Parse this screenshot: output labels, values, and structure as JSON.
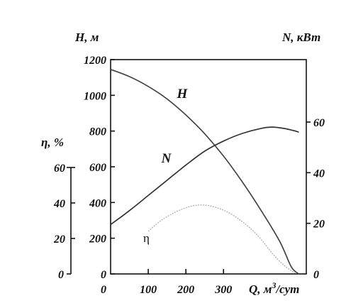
{
  "chart_data": {
    "type": "line",
    "x": {
      "label": "Q, м³/сут",
      "range": [
        0,
        520
      ],
      "ticks": [
        0,
        100,
        200,
        300
      ],
      "tick_labels": [
        "0",
        "100",
        "200",
        "300"
      ]
    },
    "y_left_H": {
      "label": "H, м",
      "range": [
        0,
        1200
      ],
      "ticks": [
        0,
        200,
        400,
        600,
        800,
        1000,
        1200
      ],
      "tick_labels": [
        "0",
        "200",
        "400",
        "600",
        "800",
        "1000",
        "1200"
      ]
    },
    "y_left_eta": {
      "label": "η, %",
      "range": [
        0,
        60
      ],
      "ticks": [
        20,
        40,
        60
      ],
      "tick_labels": [
        "20",
        "40",
        "60"
      ]
    },
    "y_right_N": {
      "label": "N, кВт",
      "range": [
        0,
        60
      ],
      "ticks": [
        0,
        20,
        40,
        60
      ],
      "tick_labels": [
        "0",
        "20",
        "40",
        "60"
      ]
    },
    "series": [
      {
        "name": "H",
        "axis": "y_left_H",
        "color": "#444444",
        "points": [
          [
            0,
            1145
          ],
          [
            50,
            1105
          ],
          [
            100,
            1050
          ],
          [
            150,
            980
          ],
          [
            200,
            890
          ],
          [
            250,
            785
          ],
          [
            300,
            660
          ],
          [
            350,
            515
          ],
          [
            400,
            355
          ],
          [
            450,
            180
          ],
          [
            480,
            40
          ],
          [
            500,
            0
          ]
        ]
      },
      {
        "name": "N",
        "axis": "y_right_N",
        "color": "#333333",
        "points": [
          [
            0,
            19.5
          ],
          [
            50,
            25
          ],
          [
            100,
            31
          ],
          [
            150,
            37
          ],
          [
            200,
            43
          ],
          [
            250,
            48.5
          ],
          [
            300,
            52.5
          ],
          [
            350,
            55.5
          ],
          [
            400,
            57.5
          ],
          [
            430,
            58
          ],
          [
            460,
            57.5
          ],
          [
            490,
            56.5
          ],
          [
            500,
            56
          ]
        ]
      },
      {
        "name": "η",
        "axis": "y_left_eta",
        "color": "#b0b0b0",
        "points": [
          [
            100,
            24
          ],
          [
            130,
            29.5
          ],
          [
            160,
            33.5
          ],
          [
            190,
            36.5
          ],
          [
            220,
            38.5
          ],
          [
            250,
            38.8
          ],
          [
            280,
            37.5
          ],
          [
            310,
            35
          ],
          [
            340,
            31
          ],
          [
            370,
            26
          ],
          [
            400,
            19.5
          ],
          [
            430,
            11.5
          ],
          [
            460,
            5
          ],
          [
            490,
            0.5
          ]
        ]
      }
    ],
    "curve_labels": [
      {
        "series": "H",
        "text": "H",
        "at": [
          190,
          985
        ],
        "style": "bold"
      },
      {
        "series": "N",
        "text": "N",
        "at": [
          148,
          44
        ],
        "style": "bold"
      },
      {
        "series": "η",
        "text": "η",
        "at": [
          95,
          18
        ],
        "style": "plain"
      }
    ],
    "grid": false,
    "legend": "none"
  }
}
